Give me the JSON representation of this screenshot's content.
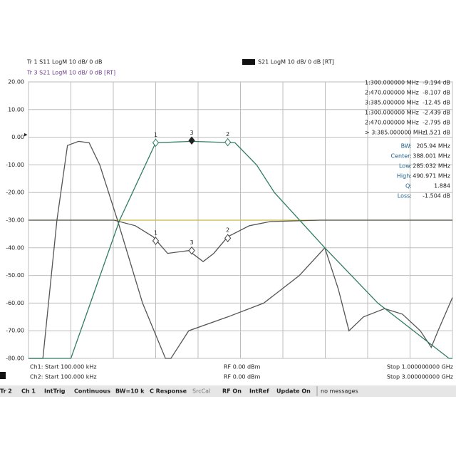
{
  "header": {
    "tr1": "Tr 1  S11 LogM 10 dB/ 0 dB",
    "tr3": "Tr 3  S21 LogM 10 dB/ 0 dB [RT]",
    "tr2": "S21 LogM 10 dB/ 0 dB [RT]"
  },
  "marker_table": [
    [
      "1:300.000000 MHz",
      "-9.194 dB"
    ],
    [
      "2:470.000000 MHz",
      "-8.107 dB"
    ],
    [
      "3:385.000000 MHz",
      "-12.45 dB"
    ],
    [
      "1:300.000000 MHz",
      "-2.439 dB"
    ],
    [
      "2:470.000000 MHz",
      "-2.795 dB"
    ],
    [
      "> 3:385.000000 MHz",
      "-1.521 dB"
    ]
  ],
  "stats": [
    [
      "BW:",
      "205.94 MHz"
    ],
    [
      "Center:",
      "388.001 MHz"
    ],
    [
      "Low:",
      "285.032 MHz"
    ],
    [
      "High:",
      "490.971 MHz"
    ],
    [
      "Q:",
      "1.884"
    ],
    [
      "Loss:",
      "-1.504 dB"
    ]
  ],
  "chart_data": {
    "type": "line",
    "xlim": [
      0,
      1000
    ],
    "ylim": [
      -80,
      20
    ],
    "yticks": [
      {
        "value": 20,
        "label": "20.00"
      },
      {
        "value": 10,
        "label": "10.00"
      },
      {
        "value": 0,
        "label": "0.00"
      },
      {
        "value": -10,
        "label": "-10.00"
      },
      {
        "value": -20,
        "label": "-20.00"
      },
      {
        "value": -30,
        "label": "-30.00"
      },
      {
        "value": -40,
        "label": "-40.00"
      },
      {
        "value": -50,
        "label": "-50.00"
      },
      {
        "value": -60,
        "label": "-60.00"
      },
      {
        "value": -70,
        "label": "-70.00"
      },
      {
        "value": -80,
        "label": "-80.00"
      }
    ],
    "xgrid": [
      0,
      100,
      200,
      300,
      400,
      500,
      600,
      700,
      800,
      900,
      1000
    ],
    "grid": true,
    "series": [
      {
        "color": "#c9b93a",
        "x": [
          0,
          1000
        ],
        "values": [
          -30,
          -30
        ]
      },
      {
        "color": "#555",
        "x": [
          0,
          202,
          252,
          294,
          328,
          378,
          412,
          437,
          470,
          521,
          571,
          689,
          1000
        ],
        "values": [
          -30,
          -30,
          -32,
          -36,
          -42,
          -41,
          -45,
          -42,
          -36,
          -32,
          -30.5,
          -30,
          -30
        ]
      },
      {
        "color": "#555",
        "x": [
          0,
          34,
          67,
          92,
          118,
          143,
          168,
          210,
          269,
          323,
          336,
          378,
          470,
          555,
          639,
          699,
          731,
          756,
          790,
          840,
          882,
          924,
          950,
          966,
          1000
        ],
        "values": [
          -80,
          -80,
          -30,
          -3,
          -1.5,
          -2,
          -10,
          -30,
          -60,
          -80,
          -80,
          -70,
          -65,
          -60,
          -50,
          -40,
          -55,
          -70,
          -65,
          -62,
          -64,
          -70,
          -76,
          -70,
          -58
        ]
      },
      {
        "color": "#2f7d5e",
        "x": [
          0,
          100,
          215,
          300,
          385,
          487,
          538,
          580,
          699,
          824,
          992,
          1000
        ],
        "values": [
          -80,
          -80,
          -30,
          -2,
          -1.5,
          -2,
          -10,
          -20,
          -40,
          -60,
          -80,
          -80
        ]
      }
    ],
    "markers": [
      {
        "label": "1",
        "x": 300,
        "y": -2,
        "color": "#2f7d5e",
        "filled": false
      },
      {
        "label": "3",
        "x": 385,
        "y": -1.2,
        "color": "#222",
        "filled": true
      },
      {
        "label": "2",
        "x": 470,
        "y": -1.8,
        "color": "#2f7d5e",
        "filled": false
      },
      {
        "label": "1",
        "x": 300,
        "y": -37.5,
        "color": "#444",
        "filled": false
      },
      {
        "label": "3",
        "x": 385,
        "y": -41,
        "color": "#444",
        "filled": false
      },
      {
        "label": "2",
        "x": 470,
        "y": -36.5,
        "color": "#444",
        "filled": false
      }
    ]
  },
  "channels": [
    [
      "Ch1: Start 100.000 kHz",
      "RF 0.00 dBm",
      "Stop 1.000000000 GHz"
    ],
    [
      "Ch2: Start 100.000 kHz",
      "RF 0.00 dBm",
      "Stop 3.000000000 GHz"
    ]
  ],
  "status_bar": [
    "Tr 2",
    "Ch 1",
    "IntTrig",
    "Continuous",
    "BW=10 k",
    "C Response",
    "SrcCal",
    "RF On",
    "IntRef",
    "Update On",
    "no messages"
  ]
}
